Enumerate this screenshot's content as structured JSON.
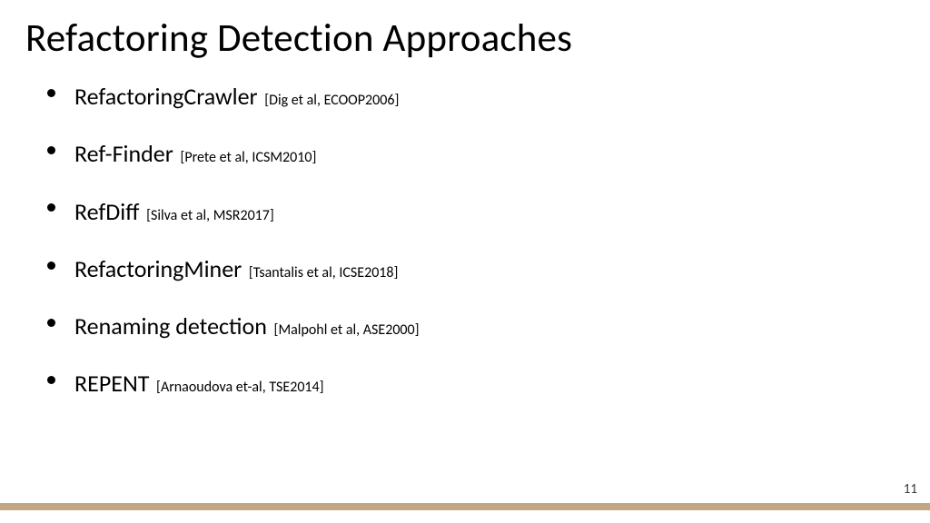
{
  "slide": {
    "title": "Refactoring Detection Approaches",
    "page_number": "11",
    "background_color": "#ffffff",
    "text_color": "#000000",
    "footer_bar_color": "#c2a882",
    "title_fontsize": 43,
    "item_name_fontsize": 26,
    "item_cite_fontsize": 16,
    "items": [
      {
        "name": "RefactoringCrawler",
        "citation": "[Dig et al,  ECOOP2006]"
      },
      {
        "name": "Ref-Finder",
        "citation": "[Prete et al, ICSM2010]"
      },
      {
        "name": "RefDiff",
        "citation": "[Silva et al, MSR2017]"
      },
      {
        "name": "RefactoringMiner",
        "citation": "[Tsantalis et al, ICSE2018]"
      },
      {
        "name": "Renaming detection",
        "citation": "[Malpohl et al, ASE2000]"
      },
      {
        "name": "REPENT",
        "citation": "[Arnaoudova et-al, TSE2014]"
      }
    ]
  }
}
